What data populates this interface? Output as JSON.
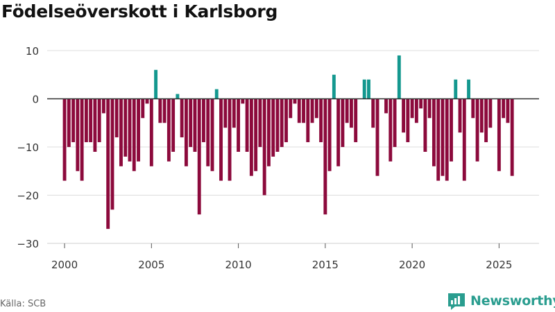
{
  "title": "Födelseöverskott i Karlsborg",
  "source": "Källa: SCB",
  "brand": "Newsworthy",
  "colors": {
    "positive": "#14988f",
    "negative": "#8c0a3c",
    "axis": "#333333",
    "grid": "#dddddd",
    "brand": "#2a9d8f"
  },
  "chart_data": {
    "type": "bar",
    "title": "Födelseöverskott i Karlsborg",
    "xlabel": "",
    "ylabel": "",
    "ylim": [
      -30,
      10
    ],
    "yticks": [
      10,
      0,
      -10,
      -20,
      -30
    ],
    "xlim": [
      1999,
      2027.3
    ],
    "xticks": [
      2000,
      2005,
      2010,
      2015,
      2020,
      2025
    ],
    "period": "quarterly",
    "x_start": 2000.0,
    "x_step": 0.25,
    "values": [
      -17,
      -10,
      -9,
      -15,
      -17,
      -9,
      -9,
      -11,
      -9,
      -3,
      -27,
      -23,
      -8,
      -14,
      -12,
      -13,
      -15,
      -13,
      -4,
      -1,
      -14,
      6,
      -5,
      -5,
      -13,
      -11,
      1,
      -8,
      -14,
      -10,
      -11,
      -24,
      -9,
      -14,
      -15,
      2,
      -17,
      -6,
      -17,
      -6,
      -11,
      -1,
      -11,
      -16,
      -15,
      -10,
      -20,
      -14,
      -12,
      -11,
      -10,
      -9,
      -4,
      -1,
      -5,
      -5,
      -9,
      -5,
      -4,
      -9,
      -24,
      -15,
      5,
      -14,
      -10,
      -5,
      -6,
      -9,
      0,
      4,
      4,
      -6,
      -16,
      0,
      -3,
      -13,
      -10,
      9,
      -7,
      -9,
      -4,
      -5,
      -2,
      -11,
      -4,
      -14,
      -17,
      -16,
      -17,
      -13,
      4,
      -7,
      -17,
      4,
      -4,
      -13,
      -7,
      -9,
      -6,
      0,
      -15,
      -4,
      -5,
      -16
    ]
  }
}
